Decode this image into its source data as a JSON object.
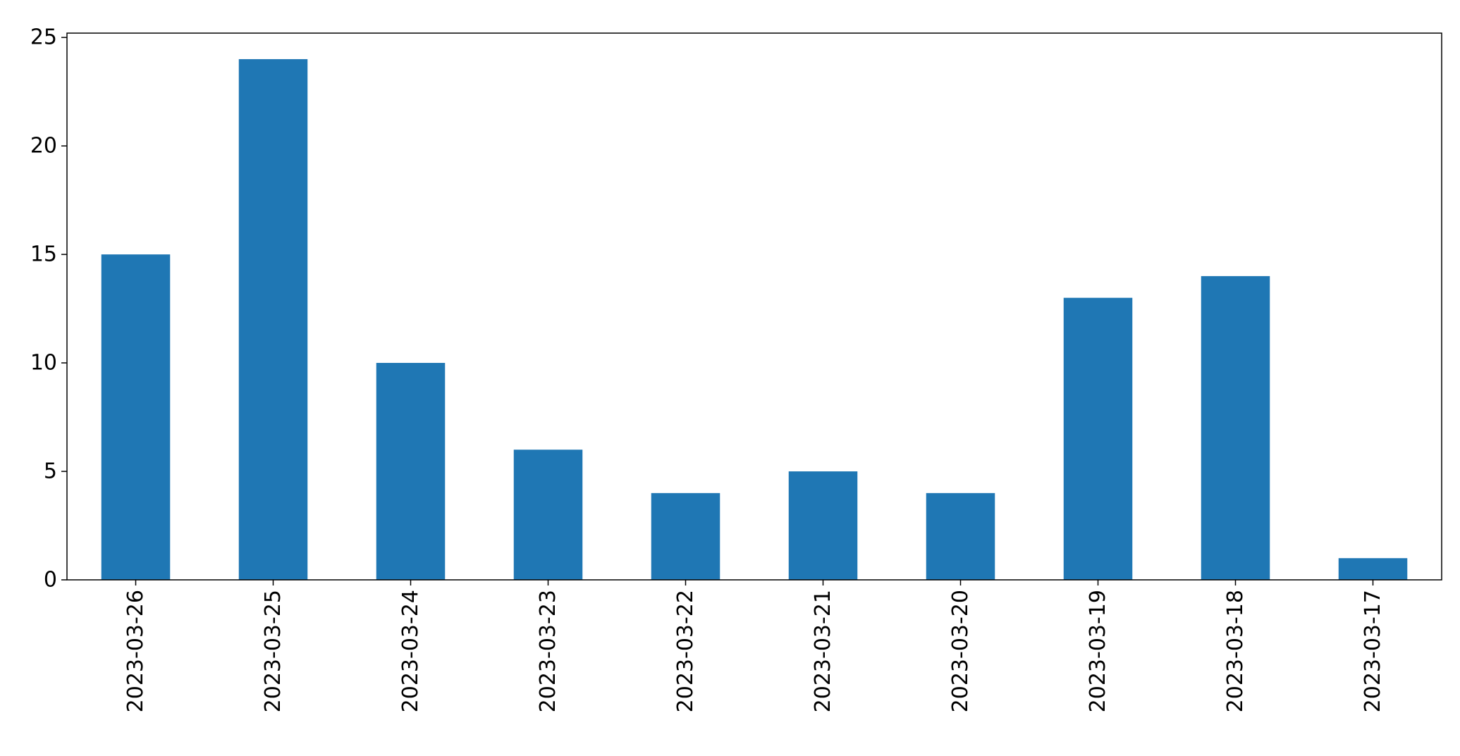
{
  "chart_data": {
    "type": "bar",
    "title": "",
    "xlabel": "",
    "ylabel": "",
    "categories": [
      "2023-03-26",
      "2023-03-25",
      "2023-03-24",
      "2023-03-23",
      "2023-03-22",
      "2023-03-21",
      "2023-03-20",
      "2023-03-19",
      "2023-03-18",
      "2023-03-17"
    ],
    "values": [
      15,
      24,
      10,
      6,
      4,
      5,
      4,
      13,
      14,
      1
    ],
    "ylim": [
      0,
      25.2
    ],
    "yticks": [
      0,
      5,
      10,
      15,
      20,
      25
    ],
    "grid": false,
    "legend": "none",
    "bar_color": "#1f77b4",
    "axis_color": "#000000"
  }
}
